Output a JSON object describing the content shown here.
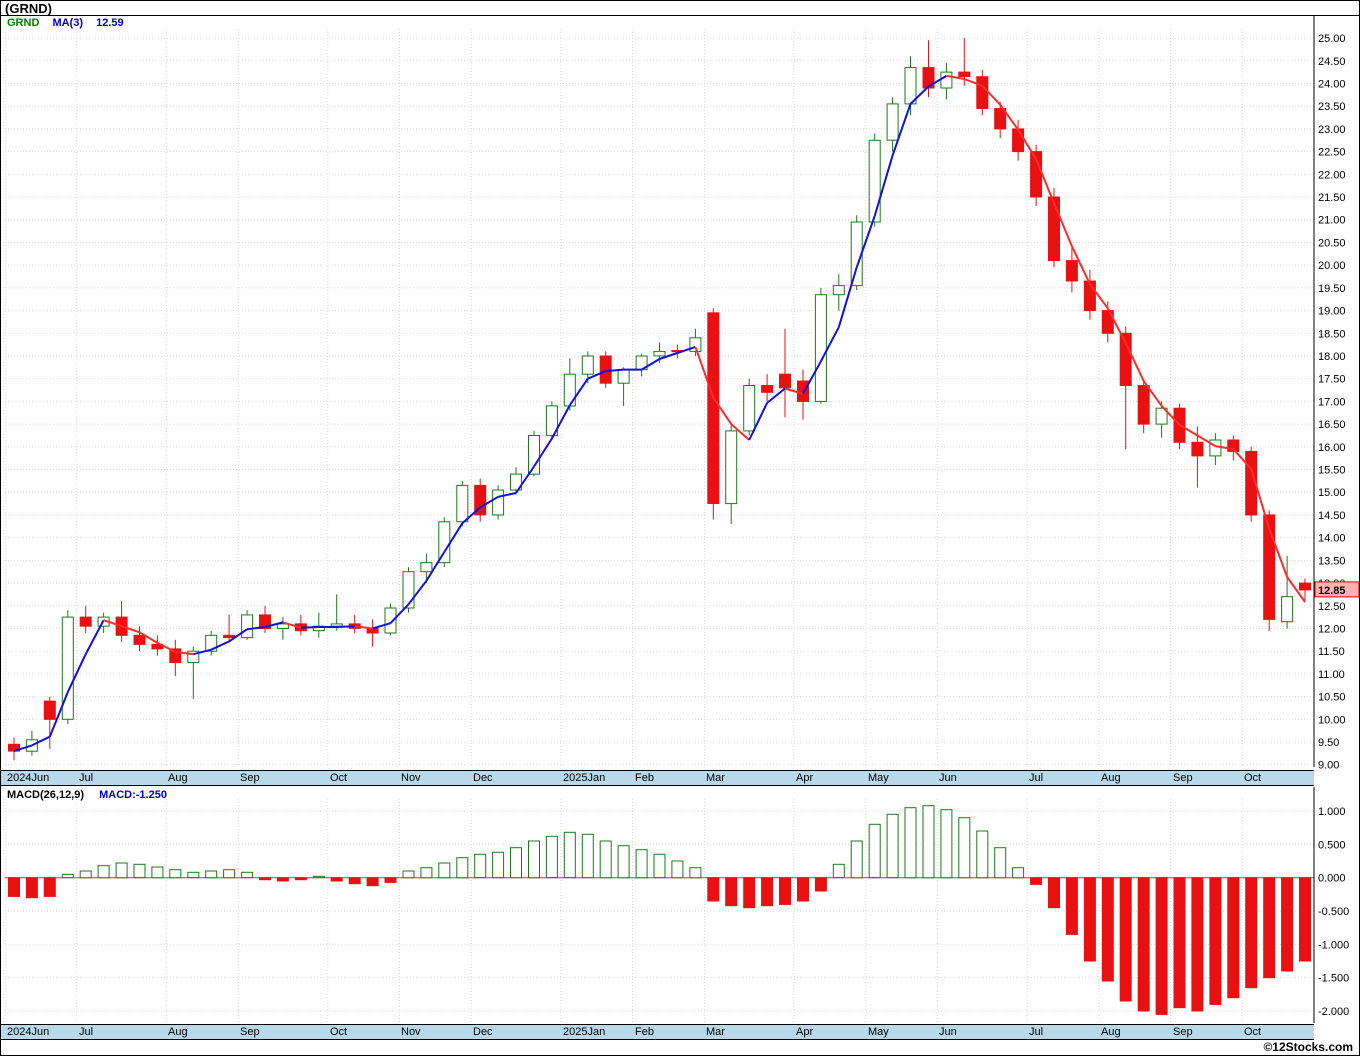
{
  "header": {
    "title": "(GRND)",
    "symbol": "GRND",
    "ma_label": "MA(3)",
    "ma_value": "12.59"
  },
  "macd_header": {
    "label": "MACD(26,12,9)",
    "value": "MACD:-1.250"
  },
  "footer": {
    "copyright": "©12Stocks.com"
  },
  "price_tag": "12.85",
  "colors": {
    "up": "#1a7a1a",
    "down": "#e81010",
    "ma_up": "#1010dd",
    "ma_down": "#ff2a2a",
    "band_bg": "#b9d9ea",
    "tag_bg": "#ffb0b0",
    "tag_border": "#dd0000",
    "legend_symbol": "#008000",
    "legend_blue": "#0000cc",
    "grid": "#d9d9d9"
  },
  "chart_data": [
    {
      "type": "candlestick",
      "name": "GRND weekly price",
      "ylim": [
        9.0,
        25.0
      ],
      "ytick_step": 0.5,
      "ma_period": 3,
      "ma_last": 12.59,
      "last_close": 12.85,
      "months": [
        {
          "label": "2024Jun",
          "index": 0
        },
        {
          "label": "Jul",
          "index": 4
        },
        {
          "label": "Aug",
          "index": 9
        },
        {
          "label": "Sep",
          "index": 13
        },
        {
          "label": "Oct",
          "index": 18
        },
        {
          "label": "Nov",
          "index": 22
        },
        {
          "label": "Dec",
          "index": 26
        },
        {
          "label": "2025Jan",
          "index": 31
        },
        {
          "label": "Feb",
          "index": 35
        },
        {
          "label": "Mar",
          "index": 39
        },
        {
          "label": "Apr",
          "index": 44
        },
        {
          "label": "May",
          "index": 48
        },
        {
          "label": "Jun",
          "index": 52
        },
        {
          "label": "Jul",
          "index": 57
        },
        {
          "label": "Aug",
          "index": 61
        },
        {
          "label": "Sep",
          "index": 65
        },
        {
          "label": "Oct",
          "index": 69
        }
      ],
      "ohlc_format": [
        "open",
        "high",
        "low",
        "close"
      ],
      "ohlc": [
        [
          9.45,
          9.6,
          9.1,
          9.3
        ],
        [
          9.3,
          9.75,
          9.2,
          9.55
        ],
        [
          10.4,
          10.5,
          9.35,
          10.0
        ],
        [
          10.0,
          12.4,
          9.9,
          12.25
        ],
        [
          12.25,
          12.5,
          11.9,
          12.05
        ],
        [
          12.05,
          12.35,
          11.9,
          12.25
        ],
        [
          12.25,
          12.6,
          11.7,
          11.85
        ],
        [
          11.85,
          12.05,
          11.5,
          11.65
        ],
        [
          11.65,
          11.85,
          11.4,
          11.55
        ],
        [
          11.55,
          11.75,
          10.95,
          11.25
        ],
        [
          11.25,
          11.6,
          10.45,
          11.5
        ],
        [
          11.5,
          11.95,
          11.4,
          11.85
        ],
        [
          11.85,
          12.3,
          11.7,
          11.8
        ],
        [
          11.8,
          12.4,
          11.75,
          12.3
        ],
        [
          12.3,
          12.5,
          11.9,
          12.0
        ],
        [
          12.0,
          12.25,
          11.75,
          12.1
        ],
        [
          12.1,
          12.3,
          11.85,
          11.95
        ],
        [
          11.95,
          12.35,
          11.8,
          12.05
        ],
        [
          12.05,
          12.75,
          11.95,
          12.1
        ],
        [
          12.1,
          12.3,
          11.9,
          12.0
        ],
        [
          12.0,
          12.2,
          11.6,
          11.9
        ],
        [
          11.9,
          12.55,
          11.85,
          12.45
        ],
        [
          12.45,
          13.35,
          12.35,
          13.25
        ],
        [
          13.25,
          13.65,
          13.0,
          13.45
        ],
        [
          13.45,
          14.45,
          13.35,
          14.35
        ],
        [
          14.35,
          15.25,
          14.25,
          15.15
        ],
        [
          15.15,
          15.3,
          14.35,
          14.5
        ],
        [
          14.5,
          15.15,
          14.4,
          15.05
        ],
        [
          15.05,
          15.55,
          14.95,
          15.4
        ],
        [
          15.4,
          16.35,
          15.35,
          16.25
        ],
        [
          16.25,
          17.0,
          16.15,
          16.9
        ],
        [
          16.9,
          17.95,
          16.8,
          17.6
        ],
        [
          17.6,
          18.1,
          17.4,
          18.0
        ],
        [
          18.0,
          18.1,
          17.3,
          17.4
        ],
        [
          17.4,
          17.75,
          16.9,
          17.7
        ],
        [
          17.7,
          18.05,
          17.55,
          18.0
        ],
        [
          18.0,
          18.3,
          17.85,
          18.1
        ],
        [
          18.12,
          18.25,
          17.95,
          18.1
        ],
        [
          18.1,
          18.6,
          18.0,
          18.4
        ],
        [
          18.95,
          19.05,
          14.4,
          14.75
        ],
        [
          14.75,
          16.5,
          14.3,
          16.35
        ],
        [
          16.35,
          17.5,
          16.25,
          17.35
        ],
        [
          17.35,
          17.6,
          17.0,
          17.2
        ],
        [
          17.6,
          18.6,
          16.65,
          17.3
        ],
        [
          17.45,
          17.7,
          16.6,
          17.0
        ],
        [
          17.0,
          19.5,
          16.95,
          19.35
        ],
        [
          19.35,
          19.8,
          19.0,
          19.55
        ],
        [
          19.55,
          21.1,
          19.45,
          20.95
        ],
        [
          20.95,
          22.9,
          20.85,
          22.75
        ],
        [
          22.75,
          23.7,
          22.5,
          23.55
        ],
        [
          23.55,
          24.6,
          23.3,
          24.35
        ],
        [
          24.35,
          24.95,
          23.7,
          23.9
        ],
        [
          23.9,
          24.45,
          23.65,
          24.25
        ],
        [
          24.25,
          25.0,
          23.95,
          24.15
        ],
        [
          24.15,
          24.3,
          23.3,
          23.45
        ],
        [
          23.45,
          23.6,
          22.8,
          23.0
        ],
        [
          23.0,
          23.2,
          22.3,
          22.5
        ],
        [
          22.5,
          22.65,
          21.3,
          21.5
        ],
        [
          21.5,
          21.7,
          19.95,
          20.1
        ],
        [
          20.1,
          20.4,
          19.4,
          19.65
        ],
        [
          19.65,
          19.9,
          18.8,
          19.0
        ],
        [
          19.0,
          19.2,
          18.3,
          18.5
        ],
        [
          18.5,
          18.65,
          15.95,
          17.35
        ],
        [
          17.35,
          17.5,
          16.3,
          16.5
        ],
        [
          16.5,
          17.0,
          16.2,
          16.85
        ],
        [
          16.85,
          16.95,
          15.95,
          16.1
        ],
        [
          16.1,
          16.45,
          15.1,
          15.8
        ],
        [
          15.8,
          16.3,
          15.6,
          16.15
        ],
        [
          16.15,
          16.25,
          15.7,
          15.9
        ],
        [
          15.9,
          16.0,
          14.35,
          14.5
        ],
        [
          14.5,
          14.6,
          11.95,
          12.2
        ],
        [
          12.15,
          13.6,
          12.0,
          12.7
        ],
        [
          13.0,
          13.1,
          12.6,
          12.85
        ]
      ]
    },
    {
      "type": "bar",
      "name": "MACD(26,12,9) histogram",
      "ylim": [
        -2.0,
        1.0
      ],
      "ytick_step": 0.5,
      "last_value": -1.25,
      "values": [
        -0.28,
        -0.3,
        -0.28,
        0.05,
        0.1,
        0.18,
        0.22,
        0.2,
        0.16,
        0.12,
        0.08,
        0.1,
        0.12,
        0.08,
        -0.03,
        -0.05,
        -0.03,
        0.02,
        -0.05,
        -0.09,
        -0.12,
        -0.07,
        0.1,
        0.15,
        0.22,
        0.3,
        0.35,
        0.38,
        0.45,
        0.55,
        0.62,
        0.68,
        0.65,
        0.55,
        0.48,
        0.42,
        0.35,
        0.25,
        0.15,
        -0.35,
        -0.42,
        -0.45,
        -0.42,
        -0.4,
        -0.35,
        -0.2,
        0.2,
        0.55,
        0.8,
        0.95,
        1.05,
        1.08,
        1.02,
        0.9,
        0.7,
        0.45,
        0.15,
        -0.1,
        -0.45,
        -0.85,
        -1.25,
        -1.55,
        -1.85,
        -2.0,
        -2.05,
        -1.95,
        -2.0,
        -1.9,
        -1.8,
        -1.65,
        -1.5,
        -1.4,
        -1.25
      ]
    }
  ]
}
